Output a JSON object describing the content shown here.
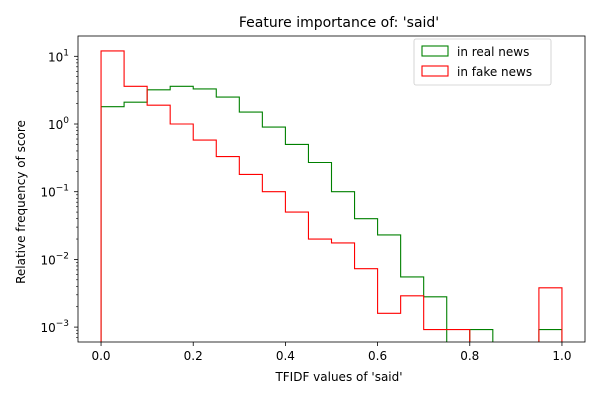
{
  "chart_data": {
    "type": "step-histogram",
    "title": "Feature importance of: 'said'",
    "xlabel": "TFIDF values of 'said'",
    "ylabel": "Relative frequency of score",
    "yscale": "log",
    "xlim": [
      -0.05,
      1.05
    ],
    "ylim_exponents": [
      -3.22,
      1.3
    ],
    "x_ticks": [
      0.0,
      0.2,
      0.4,
      0.6,
      0.8,
      1.0
    ],
    "x_tick_labels": [
      "0.0",
      "0.2",
      "0.4",
      "0.6",
      "0.8",
      "1.0"
    ],
    "y_ticks": [
      -3,
      -2,
      -1,
      0,
      1
    ],
    "y_tick_labels": [
      {
        "base": "10",
        "exp": "−3"
      },
      {
        "base": "10",
        "exp": "−2"
      },
      {
        "base": "10",
        "exp": "−1"
      },
      {
        "base": "10",
        "exp": "0"
      },
      {
        "base": "10",
        "exp": "1"
      }
    ],
    "legend_position": "top-right",
    "bin_edges": [
      0.0,
      0.05,
      0.1,
      0.15,
      0.2,
      0.25,
      0.3,
      0.35,
      0.4,
      0.45,
      0.5,
      0.55,
      0.6,
      0.65,
      0.7,
      0.75,
      0.8,
      0.85,
      0.9,
      0.95,
      1.0
    ],
    "series": [
      {
        "name": "in real news",
        "color": "#008000",
        "values": [
          1.8,
          2.1,
          3.2,
          3.6,
          3.3,
          2.5,
          1.5,
          0.9,
          0.5,
          0.27,
          0.1,
          0.04,
          0.023,
          0.0055,
          0.0028,
          0,
          0.00092,
          0,
          0,
          0.00092
        ]
      },
      {
        "name": "in fake news",
        "color": "#ff0000",
        "values": [
          12.0,
          3.6,
          1.9,
          1.0,
          0.58,
          0.33,
          0.18,
          0.1,
          0.05,
          0.02,
          0.0175,
          0.0073,
          0.0016,
          0.0029,
          0.00092,
          0.00092,
          0,
          0,
          0,
          0.0038
        ]
      }
    ]
  }
}
